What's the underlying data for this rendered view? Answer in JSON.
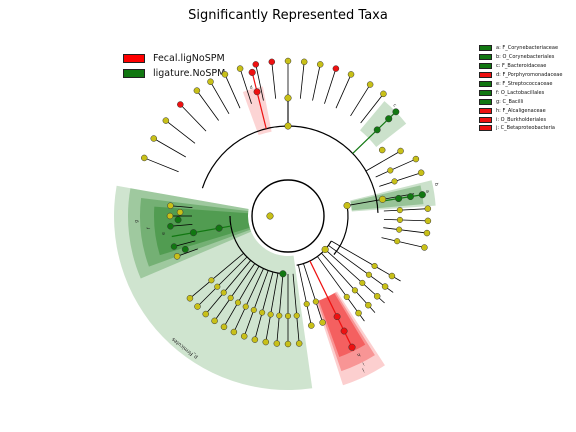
{
  "title": "Significantly Represented Taxa",
  "colors": {
    "fecal": "#ff0000",
    "ligature": "#007700"
  },
  "legend": [
    {
      "label": "Fecal.ligNoSPM",
      "color": "#ff0000"
    },
    {
      "label": "ligature.NoSPM",
      "color": "#117711"
    }
  ],
  "taxa": [
    {
      "label": "a: F_Corynebacteriaceae",
      "color": "#117711"
    },
    {
      "label": "b: O_Corynebacteriales",
      "color": "#117711"
    },
    {
      "label": "c: F_Bacteroidaceae",
      "color": "#117711"
    },
    {
      "label": "d: F_Porphyromonadaceae",
      "color": "#ee1111"
    },
    {
      "label": "e: F_Streptococcaceae",
      "color": "#117711"
    },
    {
      "label": "f: O_Lactobacillales",
      "color": "#117711"
    },
    {
      "label": "g: C_Bacilli",
      "color": "#117711"
    },
    {
      "label": "h: F_Alcaligenaceae",
      "color": "#ee1111"
    },
    {
      "label": "i: O_Burkholderiales",
      "color": "#ee1111"
    },
    {
      "label": "j: C_Betaproteobacteria",
      "color": "#ee1111"
    }
  ],
  "clade_letters": [
    "a",
    "b",
    "c",
    "d",
    "e",
    "f",
    "g",
    "h",
    "i",
    "j"
  ],
  "phylum_label": "p_Firmicutes"
}
